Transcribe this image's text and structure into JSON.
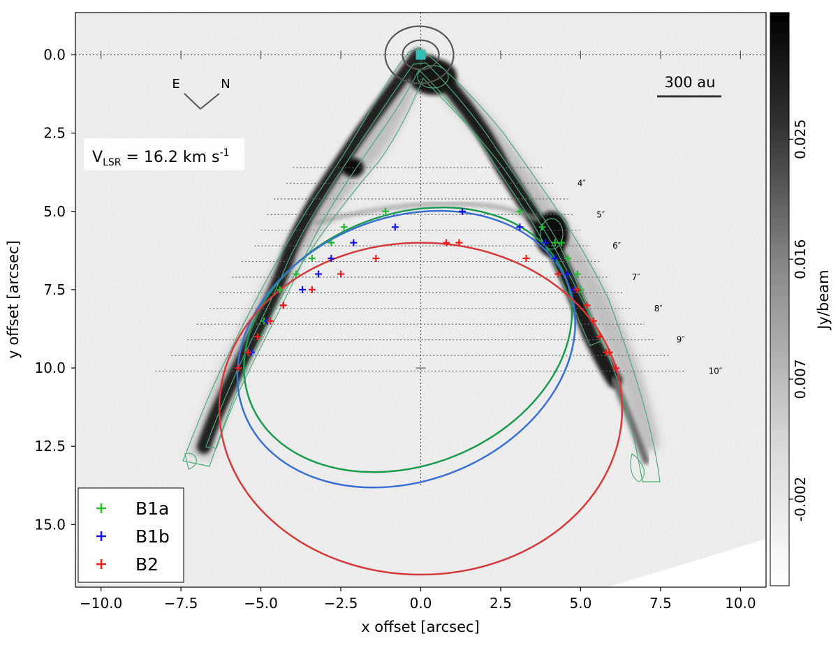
{
  "chart_data": {
    "type": "image-contour-overlay",
    "xlabel": "x offset [arcsec]",
    "ylabel": "y offset [arcsec]",
    "xlim": [
      -10.8,
      10.8
    ],
    "ylim": [
      17.0,
      -1.35
    ],
    "x_ticks": [
      -10.0,
      -7.5,
      -5.0,
      -2.5,
      0.0,
      2.5,
      5.0,
      7.5,
      10.0
    ],
    "x_tick_labels": [
      "−10.0",
      "−7.5",
      "−5.0",
      "−2.5",
      "0.0",
      "2.5",
      "5.0",
      "7.5",
      "10.0"
    ],
    "y_ticks": [
      0.0,
      2.5,
      5.0,
      7.5,
      10.0,
      12.5,
      15.0
    ],
    "y_tick_labels": [
      "0.0",
      "2.5",
      "5.0",
      "7.5",
      "10.0",
      "12.5",
      "15.0"
    ],
    "colorbar": {
      "label": "Jy/beam",
      "range": [
        -0.0085,
        0.0345
      ],
      "ticks": [
        -0.002,
        0.007,
        0.016,
        0.025
      ],
      "tick_labels": [
        "-0.002",
        "0.007",
        "0.016",
        "0.025"
      ],
      "colormap": "greys"
    },
    "annotations": {
      "vlsr_prefix": "V",
      "vlsr_sub": "LSR",
      "vlsr_value": " = 16.2 km s",
      "vlsr_exp": "-1",
      "scalebar_label": "300 au",
      "compass_e": "E",
      "compass_n": "N"
    },
    "cut_lines": [
      {
        "y": 3.6,
        "x0": -4.0,
        "x1": 3.8,
        "label": ""
      },
      {
        "y": 4.1,
        "x0": -4.2,
        "x1": 4.2,
        "label": "4″"
      },
      {
        "y": 4.6,
        "x0": -4.6,
        "x1": 4.6,
        "label": ""
      },
      {
        "y": 5.1,
        "x0": -4.8,
        "x1": 4.8,
        "label": "5″"
      },
      {
        "y": 5.6,
        "x0": -5.0,
        "x1": 5.0,
        "label": ""
      },
      {
        "y": 6.1,
        "x0": -5.2,
        "x1": 5.3,
        "label": "6″"
      },
      {
        "y": 6.6,
        "x0": -5.6,
        "x1": 5.6,
        "label": ""
      },
      {
        "y": 7.1,
        "x0": -5.9,
        "x1": 5.9,
        "label": "7″"
      },
      {
        "y": 7.6,
        "x0": -6.3,
        "x1": 6.3,
        "label": ""
      },
      {
        "y": 8.1,
        "x0": -6.6,
        "x1": 6.6,
        "label": "8″"
      },
      {
        "y": 8.6,
        "x0": -7.0,
        "x1": 7.0,
        "label": ""
      },
      {
        "y": 9.1,
        "x0": -7.3,
        "x1": 7.3,
        "label": "9″"
      },
      {
        "y": 9.6,
        "x0": -7.8,
        "x1": 7.8,
        "label": ""
      },
      {
        "y": 10.1,
        "x0": -8.3,
        "x1": 8.3,
        "label": "10″"
      }
    ],
    "ellipses": [
      {
        "name": "B1a",
        "color": "#1a9a4e",
        "cx": -0.4,
        "cy": 9.1,
        "rx": 5.3,
        "ry": 4.0,
        "angle_deg": -22
      },
      {
        "name": "B1b",
        "color": "#3a6fd2",
        "cx": -0.45,
        "cy": 9.4,
        "rx": 5.45,
        "ry": 4.2,
        "angle_deg": -22
      },
      {
        "name": "B2",
        "color": "#d6393a",
        "cx": 0.0,
        "cy": 11.3,
        "rx": 6.3,
        "ry": 5.3,
        "angle_deg": 0
      }
    ],
    "series": [
      {
        "name": "B1a",
        "color": "#22bb33",
        "x": [
          -5.4,
          -4.9,
          -4.4,
          -3.9,
          -3.4,
          -2.8,
          -2.4,
          -1.1,
          3.1,
          3.8,
          4.2,
          4.4,
          4.6,
          4.9,
          5.0
        ],
        "y": [
          9.5,
          8.5,
          7.5,
          7.0,
          6.5,
          6.0,
          5.5,
          5.0,
          5.0,
          5.5,
          6.0,
          6.0,
          6.5,
          7.0,
          7.5
        ]
      },
      {
        "name": "B1b",
        "color": "#1515dd",
        "x": [
          -5.3,
          -4.8,
          -4.3,
          -3.7,
          -3.2,
          -2.8,
          -2.1,
          -0.8,
          1.3,
          3.1,
          3.9,
          4.2,
          4.6,
          4.8
        ],
        "y": [
          9.5,
          8.5,
          8.0,
          7.5,
          7.0,
          6.5,
          6.0,
          5.5,
          5.0,
          5.5,
          6.0,
          6.5,
          7.0,
          7.5
        ]
      },
      {
        "name": "B2",
        "color": "#ee1c1c",
        "x": [
          -5.7,
          -5.4,
          -5.1,
          -4.7,
          -4.3,
          -3.4,
          -2.5,
          -1.4,
          0.8,
          1.2,
          3.3,
          4.3,
          4.9,
          5.2,
          5.4,
          5.6,
          5.8,
          5.9,
          6.1
        ],
        "y": [
          10.0,
          9.5,
          9.0,
          8.5,
          8.0,
          7.5,
          7.0,
          6.5,
          6.0,
          6.0,
          6.5,
          7.0,
          7.5,
          8.0,
          8.5,
          9.0,
          9.5,
          9.5,
          10.0
        ]
      }
    ],
    "source_marker": {
      "x": 0.0,
      "y": 0.0,
      "color": "#33c0b4"
    },
    "legend": {
      "placement": "bottom-left",
      "entries": [
        "B1a",
        "B1b",
        "B2"
      ]
    },
    "grid": false
  }
}
